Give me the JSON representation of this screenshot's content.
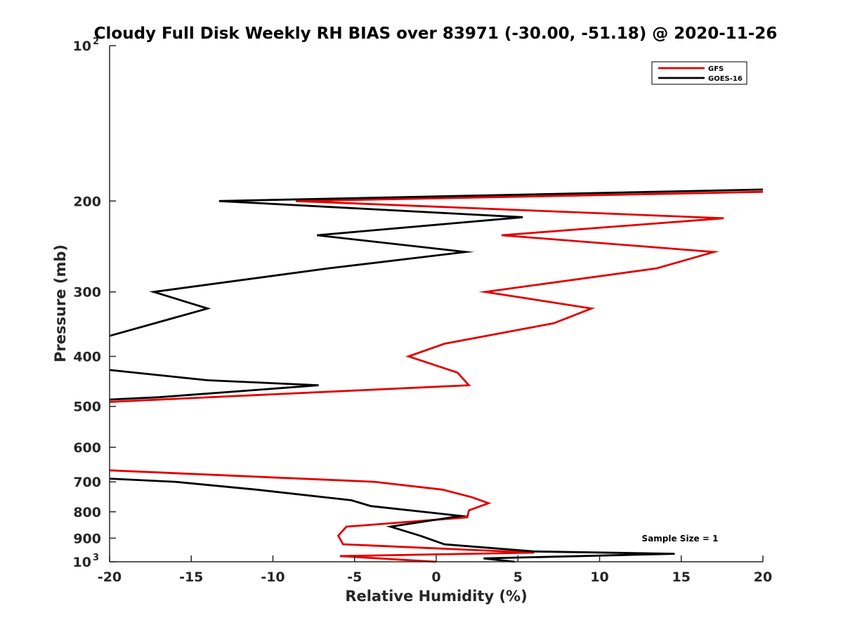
{
  "chart_data": {
    "type": "line",
    "title": "Cloudy Full Disk Weekly RH BIAS over 83971 (-30.00, -51.18) @ 2020-11-26",
    "xlabel": "Relative Humidity (%)",
    "ylabel": "Pressure (mb)",
    "xlim": [
      -20,
      20
    ],
    "ylim": [
      100,
      1000
    ],
    "y_scale": "log",
    "y_reversed": true,
    "grid": false,
    "legend_position": "top-right",
    "x_ticks": [
      "-20",
      "-15",
      "-10",
      "-5",
      "0",
      "5",
      "10",
      "15",
      "20"
    ],
    "y_ticks": [
      {
        "value": 100,
        "base": "10",
        "exp": "2"
      },
      {
        "value": 200,
        "label": "200"
      },
      {
        "value": 300,
        "label": "300"
      },
      {
        "value": 400,
        "label": "400"
      },
      {
        "value": 500,
        "label": "500"
      },
      {
        "value": 600,
        "label": "600"
      },
      {
        "value": 700,
        "label": "700"
      },
      {
        "value": 800,
        "label": "800"
      },
      {
        "value": 900,
        "label": "900"
      },
      {
        "value": 1000,
        "base": "10",
        "exp": "3"
      }
    ],
    "series": [
      {
        "name": "GFS",
        "color": "#e00000",
        "points": [
          [
            20.0,
            192
          ],
          [
            -8.6,
            200
          ],
          [
            17.6,
            216
          ],
          [
            4.0,
            233
          ],
          [
            17.0,
            251
          ],
          [
            13.5,
            270
          ],
          [
            3.0,
            300
          ],
          [
            9.5,
            323
          ],
          [
            7.2,
            345
          ],
          [
            0.5,
            378
          ],
          [
            -1.7,
            400
          ],
          [
            1.3,
            430
          ],
          [
            2.0,
            455
          ],
          [
            -20.0,
            490
          ],
          [
            null,
            null
          ],
          [
            -20.0,
            665
          ],
          [
            -3.8,
            700
          ],
          [
            0.4,
            725
          ],
          [
            2.2,
            750
          ],
          [
            3.2,
            770
          ],
          [
            2.0,
            795
          ],
          [
            1.9,
            820
          ],
          [
            -5.5,
            855
          ],
          [
            -6.0,
            890
          ],
          [
            -5.7,
            925
          ],
          [
            6.0,
            960
          ],
          [
            -5.9,
            975
          ],
          [
            0.0,
            1000
          ]
        ]
      },
      {
        "name": "GOES-16",
        "color": "#000000",
        "points": [
          [
            20.0,
            190
          ],
          [
            -13.3,
            200
          ],
          [
            5.3,
            215
          ],
          [
            -7.3,
            233
          ],
          [
            1.8,
            251
          ],
          [
            -6.6,
            270
          ],
          [
            -17.3,
            300
          ],
          [
            -14.0,
            323
          ],
          [
            -20.0,
            365
          ],
          [
            null,
            null
          ],
          [
            -20.0,
            425
          ],
          [
            -14.0,
            445
          ],
          [
            -7.2,
            455
          ],
          [
            -17.0,
            480
          ],
          [
            -20.0,
            485
          ],
          [
            null,
            null
          ],
          [
            -20.0,
            690
          ],
          [
            -16.0,
            700
          ],
          [
            -11.0,
            725
          ],
          [
            -5.2,
            760
          ],
          [
            -4.0,
            780
          ],
          [
            1.5,
            815
          ],
          [
            -2.8,
            855
          ],
          [
            -1.0,
            890
          ],
          [
            0.5,
            925
          ],
          [
            6.0,
            955
          ],
          [
            14.6,
            965
          ],
          [
            2.9,
            985
          ],
          [
            4.8,
            1000
          ]
        ]
      }
    ],
    "annotation": "Sample Size = 1"
  }
}
